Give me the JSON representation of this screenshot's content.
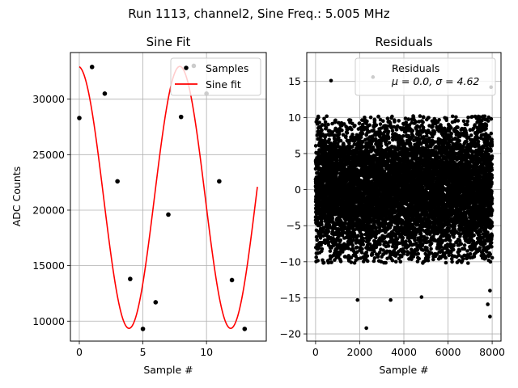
{
  "figure": {
    "suptitle": "Run 1113, channel2, Sine Freq.: 5.005 MHz"
  },
  "chart_data": [
    {
      "type": "line",
      "title": "Sine Fit",
      "xlabel": "Sample #",
      "ylabel": "ADC Counts",
      "xlim": [
        -0.7,
        14.7
      ],
      "ylim": [
        8200,
        34200
      ],
      "xticks": [
        0,
        5,
        10
      ],
      "yticks": [
        10000,
        15000,
        20000,
        25000,
        30000
      ],
      "grid": true,
      "legend": {
        "placement": "top-right",
        "entries": [
          "Samples",
          "Sine fit"
        ]
      },
      "series": [
        {
          "name": "Samples",
          "style": "scatter",
          "color": "#000000",
          "x": [
            0,
            1,
            2,
            3,
            4,
            5,
            6,
            7,
            8,
            9,
            10,
            11,
            12,
            13
          ],
          "y": [
            28300,
            32900,
            30500,
            22600,
            13800,
            9300,
            11700,
            19600,
            28400,
            33000,
            30500,
            22600,
            13700,
            9300
          ]
        },
        {
          "name": "Sine fit",
          "style": "line",
          "color": "#ff0000",
          "model": {
            "offset": 21150,
            "amplitude": 11800,
            "period": 7.992,
            "phase_deg": 94,
            "x_range": [
              0,
              14
            ]
          }
        }
      ]
    },
    {
      "type": "scatter",
      "title": "Residuals",
      "xlabel": "Sample #",
      "ylabel": "",
      "xlim": [
        -400,
        8400
      ],
      "ylim": [
        -21,
        19
      ],
      "xticks": [
        0,
        2000,
        4000,
        6000,
        8000
      ],
      "yticks": [
        -20,
        -15,
        -10,
        -5,
        0,
        5,
        10,
        15
      ],
      "grid": true,
      "legend": {
        "placement": "top-right",
        "entries": [
          "Residuals",
          "μ = 0.0, σ = 4.62"
        ]
      },
      "series": [
        {
          "name": "Residuals",
          "color": "#000000",
          "n_points": 8000,
          "x_range": [
            0,
            8000
          ],
          "mean": 0.0,
          "std": 4.62,
          "clip": [
            -10.2,
            10.2
          ],
          "outliers": [
            [
              2300,
              -19.2
            ],
            [
              1900,
              -15.3
            ],
            [
              3400,
              -15.3
            ],
            [
              4800,
              -14.9
            ],
            [
              7900,
              -17.6
            ],
            [
              7800,
              -15.9
            ],
            [
              2600,
              15.6
            ],
            [
              700,
              15.1
            ],
            [
              7950,
              14.2
            ],
            [
              7900,
              -14.0
            ]
          ]
        }
      ]
    }
  ]
}
